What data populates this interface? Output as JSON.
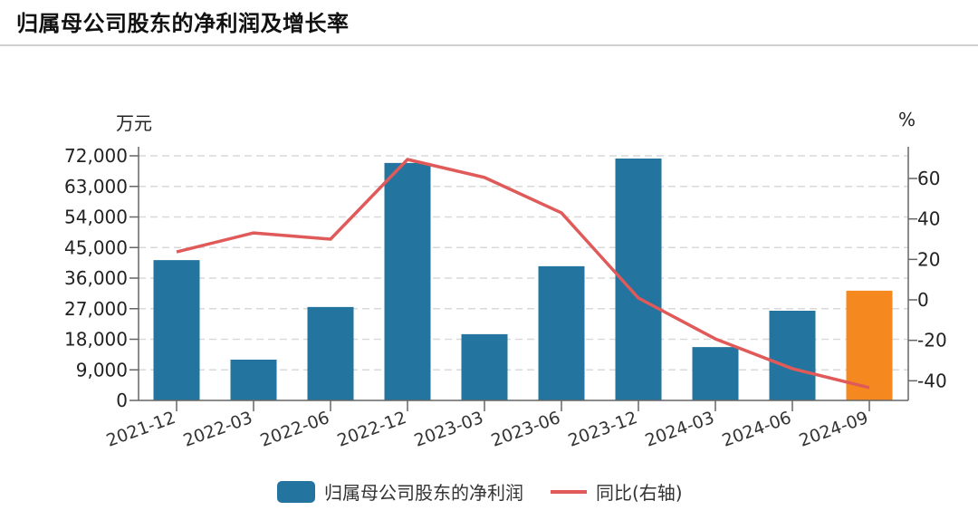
{
  "title": "归属母公司股东的净利润及增长率",
  "left_unit": "万元",
  "right_unit": "%",
  "legend": {
    "bar_label": "归属母公司股东的净利润",
    "line_label": "同比(右轴)"
  },
  "colors": {
    "bar": "#23749f",
    "bar_highlight": "#f5881f",
    "line": "#e05a5a",
    "grid": "#d9d9d9",
    "axis": "#666666"
  },
  "chart_data": {
    "type": "bar+line",
    "title": "归属母公司股东的净利润及增长率",
    "categories": [
      "2021-12",
      "2022-03",
      "2022-06",
      "2022-12",
      "2023-03",
      "2023-06",
      "2023-12",
      "2024-03",
      "2024-06",
      "2024-09"
    ],
    "series": [
      {
        "name": "归属母公司股东的净利润",
        "type": "bar",
        "axis": "left",
        "values": [
          41300,
          12000,
          27500,
          69900,
          19500,
          39500,
          71200,
          15700,
          26400,
          32300
        ],
        "highlight_index": 9
      },
      {
        "name": "同比(右轴)",
        "type": "line",
        "axis": "right",
        "values": [
          23.7,
          33.1,
          30.0,
          69.4,
          60.5,
          43.0,
          0.9,
          -19.3,
          -34.0,
          -43.4
        ]
      }
    ],
    "ylabel_left": "万元",
    "ylabel_right": "%",
    "ylim_left": [
      0,
      72000
    ],
    "yticks_left": [
      0,
      9000,
      18000,
      27000,
      36000,
      45000,
      54000,
      63000,
      72000
    ],
    "ytick_labels_left": [
      "0",
      "9,000",
      "18,000",
      "27,000",
      "36,000",
      "45,000",
      "54,000",
      "63,000",
      "72,000"
    ],
    "ylim_right": [
      -49.6,
      74.6
    ],
    "yticks_right": [
      -40,
      -20,
      0,
      20,
      40,
      60
    ],
    "grid": true,
    "legend_position": "bottom"
  }
}
